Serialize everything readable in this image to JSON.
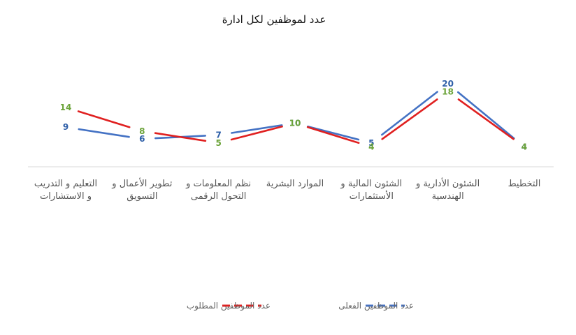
{
  "chart_data": {
    "type": "line",
    "title": "عدد لموظفين لكل ادارة",
    "categories": [
      [
        "التعليم و التدريب",
        "و الاستشارات"
      ],
      [
        "تطوير الأعمال و",
        "التسويق"
      ],
      [
        "نظم المعلومات و",
        "التحول الرقمى"
      ],
      [
        "الموارد البشرية"
      ],
      [
        "الشئون المالية و",
        "الأستثمارات"
      ],
      [
        "الشئون الأدارية و",
        "الهندسية"
      ],
      [
        "التخطيط"
      ]
    ],
    "series": [
      {
        "name": "عدد الموظفين الفعلى",
        "color": "#4472C4",
        "label_color": "#2E5FA8",
        "values": [
          9,
          6,
          7,
          10,
          5,
          20,
          4
        ]
      },
      {
        "name": "عدد الموظفين المطلوب",
        "color": "#E02020",
        "label_color": "#6BA339",
        "values": [
          14,
          8,
          5,
          10,
          4,
          18,
          4
        ]
      }
    ],
    "legend": "bottom",
    "grid": false
  }
}
